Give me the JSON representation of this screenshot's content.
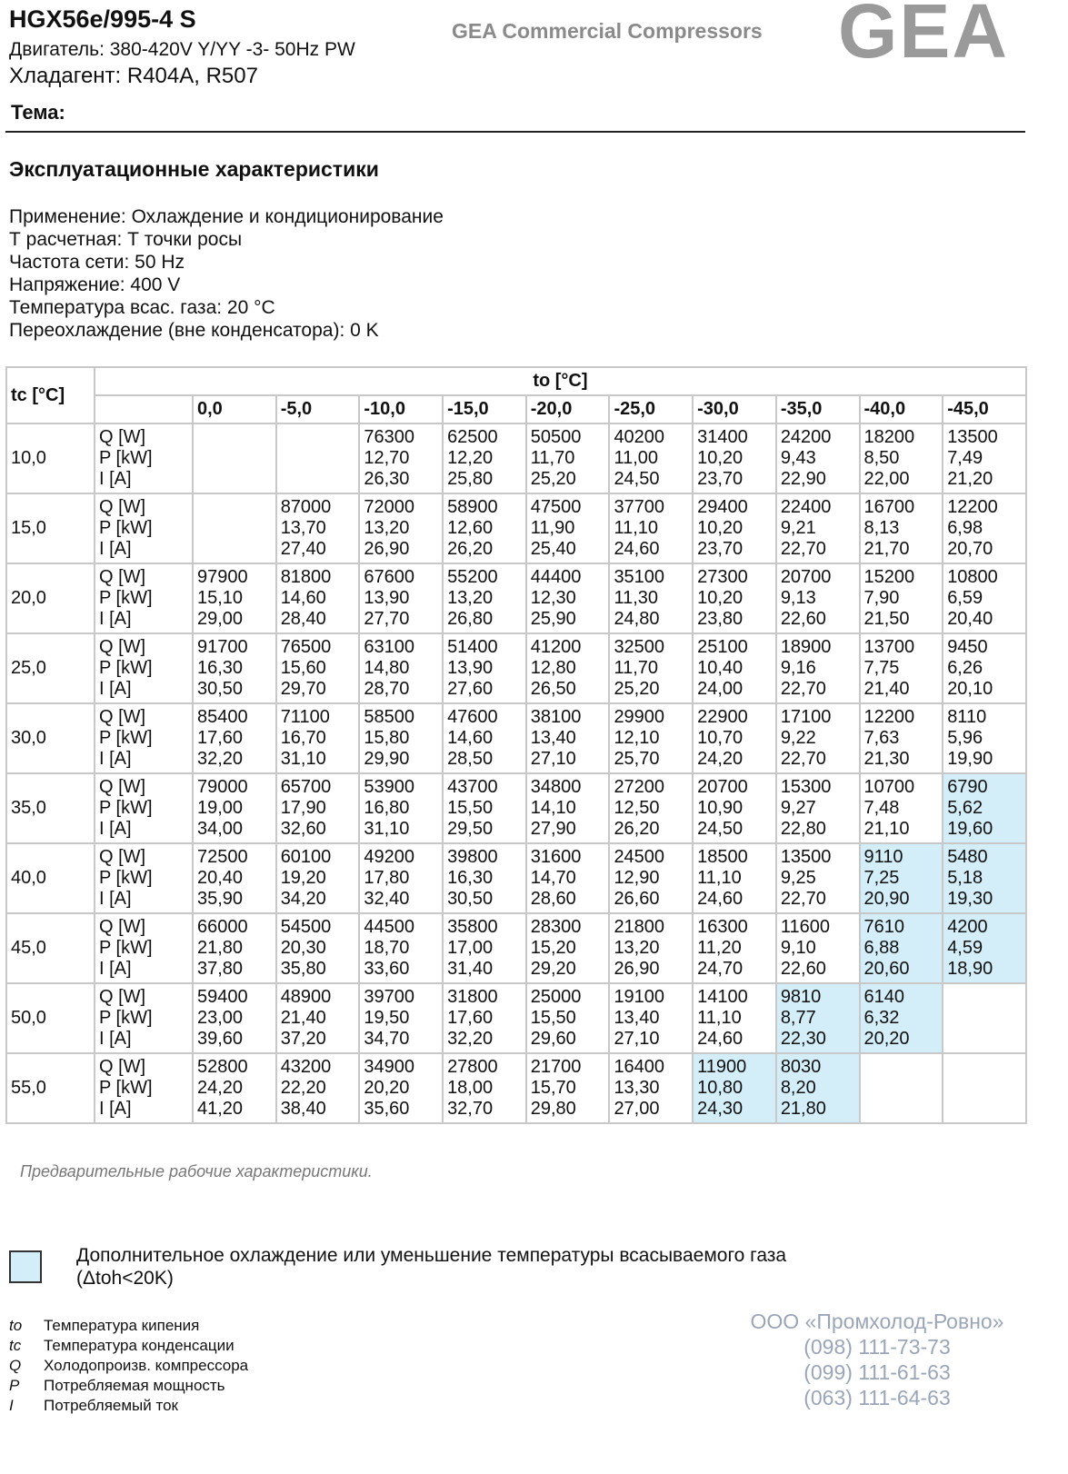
{
  "header": {
    "title": "HGX56e/995-4 S",
    "motor": "Двигатель: 380-420V Y/YY -3- 50Hz PW",
    "refrigerant": "Хладагент: R404A, R507",
    "subject": "Тема:",
    "brand": "GEA Commercial Compressors",
    "logo": "GEA"
  },
  "section_title": "Эксплуатационные характеристики",
  "params": [
    "Применение: Охлаждение и кондиционирование",
    "Т расчетная: Т точки росы",
    "Частота сети: 50 Hz",
    "Напряжение: 400 V",
    "Температура всас. газа: 20 °C",
    "Переохлаждение (вне конденсатора): 0 K"
  ],
  "table": {
    "corner": "tc [°C]",
    "group_header": "to [°C]",
    "columns": [
      "0,0",
      "-5,0",
      "-10,0",
      "-15,0",
      "-20,0",
      "-25,0",
      "-30,0",
      "-35,0",
      "-40,0",
      "-45,0"
    ],
    "quantities": [
      "Q [W]",
      "P [kW]",
      "I [A]"
    ],
    "highlight_color": "#d3eef8",
    "rows": [
      {
        "tc": "10,0",
        "cells": [
          null,
          null,
          {
            "values": [
              "76300",
              "12,70",
              "26,30"
            ],
            "highlight": false
          },
          {
            "values": [
              "62500",
              "12,20",
              "25,80"
            ],
            "highlight": false
          },
          {
            "values": [
              "50500",
              "11,70",
              "25,20"
            ],
            "highlight": false
          },
          {
            "values": [
              "40200",
              "11,00",
              "24,50"
            ],
            "highlight": false
          },
          {
            "values": [
              "31400",
              "10,20",
              "23,70"
            ],
            "highlight": false
          },
          {
            "values": [
              "24200",
              "9,43",
              "22,90"
            ],
            "highlight": false
          },
          {
            "values": [
              "18200",
              "8,50",
              "22,00"
            ],
            "highlight": false
          },
          {
            "values": [
              "13500",
              "7,49",
              "21,20"
            ],
            "highlight": false
          }
        ]
      },
      {
        "tc": "15,0",
        "cells": [
          null,
          {
            "values": [
              "87000",
              "13,70",
              "27,40"
            ],
            "highlight": false
          },
          {
            "values": [
              "72000",
              "13,20",
              "26,90"
            ],
            "highlight": false
          },
          {
            "values": [
              "58900",
              "12,60",
              "26,20"
            ],
            "highlight": false
          },
          {
            "values": [
              "47500",
              "11,90",
              "25,40"
            ],
            "highlight": false
          },
          {
            "values": [
              "37700",
              "11,10",
              "24,60"
            ],
            "highlight": false
          },
          {
            "values": [
              "29400",
              "10,20",
              "23,70"
            ],
            "highlight": false
          },
          {
            "values": [
              "22400",
              "9,21",
              "22,70"
            ],
            "highlight": false
          },
          {
            "values": [
              "16700",
              "8,13",
              "21,70"
            ],
            "highlight": false
          },
          {
            "values": [
              "12200",
              "6,98",
              "20,70"
            ],
            "highlight": false
          }
        ]
      },
      {
        "tc": "20,0",
        "cells": [
          {
            "values": [
              "97900",
              "15,10",
              "29,00"
            ],
            "highlight": false
          },
          {
            "values": [
              "81800",
              "14,60",
              "28,40"
            ],
            "highlight": false
          },
          {
            "values": [
              "67600",
              "13,90",
              "27,70"
            ],
            "highlight": false
          },
          {
            "values": [
              "55200",
              "13,20",
              "26,80"
            ],
            "highlight": false
          },
          {
            "values": [
              "44400",
              "12,30",
              "25,90"
            ],
            "highlight": false
          },
          {
            "values": [
              "35100",
              "11,30",
              "24,80"
            ],
            "highlight": false
          },
          {
            "values": [
              "27300",
              "10,20",
              "23,80"
            ],
            "highlight": false
          },
          {
            "values": [
              "20700",
              "9,13",
              "22,60"
            ],
            "highlight": false
          },
          {
            "values": [
              "15200",
              "7,90",
              "21,50"
            ],
            "highlight": false
          },
          {
            "values": [
              "10800",
              "6,59",
              "20,40"
            ],
            "highlight": false
          }
        ]
      },
      {
        "tc": "25,0",
        "cells": [
          {
            "values": [
              "91700",
              "16,30",
              "30,50"
            ],
            "highlight": false
          },
          {
            "values": [
              "76500",
              "15,60",
              "29,70"
            ],
            "highlight": false
          },
          {
            "values": [
              "63100",
              "14,80",
              "28,70"
            ],
            "highlight": false
          },
          {
            "values": [
              "51400",
              "13,90",
              "27,60"
            ],
            "highlight": false
          },
          {
            "values": [
              "41200",
              "12,80",
              "26,50"
            ],
            "highlight": false
          },
          {
            "values": [
              "32500",
              "11,70",
              "25,20"
            ],
            "highlight": false
          },
          {
            "values": [
              "25100",
              "10,40",
              "24,00"
            ],
            "highlight": false
          },
          {
            "values": [
              "18900",
              "9,16",
              "22,70"
            ],
            "highlight": false
          },
          {
            "values": [
              "13700",
              "7,75",
              "21,40"
            ],
            "highlight": false
          },
          {
            "values": [
              "9450",
              "6,26",
              "20,10"
            ],
            "highlight": false
          }
        ]
      },
      {
        "tc": "30,0",
        "cells": [
          {
            "values": [
              "85400",
              "17,60",
              "32,20"
            ],
            "highlight": false
          },
          {
            "values": [
              "71100",
              "16,70",
              "31,10"
            ],
            "highlight": false
          },
          {
            "values": [
              "58500",
              "15,80",
              "29,90"
            ],
            "highlight": false
          },
          {
            "values": [
              "47600",
              "14,60",
              "28,50"
            ],
            "highlight": false
          },
          {
            "values": [
              "38100",
              "13,40",
              "27,10"
            ],
            "highlight": false
          },
          {
            "values": [
              "29900",
              "12,10",
              "25,70"
            ],
            "highlight": false
          },
          {
            "values": [
              "22900",
              "10,70",
              "24,20"
            ],
            "highlight": false
          },
          {
            "values": [
              "17100",
              "9,22",
              "22,70"
            ],
            "highlight": false
          },
          {
            "values": [
              "12200",
              "7,63",
              "21,30"
            ],
            "highlight": false
          },
          {
            "values": [
              "8110",
              "5,96",
              "19,90"
            ],
            "highlight": false
          }
        ]
      },
      {
        "tc": "35,0",
        "cells": [
          {
            "values": [
              "79000",
              "19,00",
              "34,00"
            ],
            "highlight": false
          },
          {
            "values": [
              "65700",
              "17,90",
              "32,60"
            ],
            "highlight": false
          },
          {
            "values": [
              "53900",
              "16,80",
              "31,10"
            ],
            "highlight": false
          },
          {
            "values": [
              "43700",
              "15,50",
              "29,50"
            ],
            "highlight": false
          },
          {
            "values": [
              "34800",
              "14,10",
              "27,90"
            ],
            "highlight": false
          },
          {
            "values": [
              "27200",
              "12,50",
              "26,20"
            ],
            "highlight": false
          },
          {
            "values": [
              "20700",
              "10,90",
              "24,50"
            ],
            "highlight": false
          },
          {
            "values": [
              "15300",
              "9,27",
              "22,80"
            ],
            "highlight": false
          },
          {
            "values": [
              "10700",
              "7,48",
              "21,10"
            ],
            "highlight": false
          },
          {
            "values": [
              "6790",
              "5,62",
              "19,60"
            ],
            "highlight": true
          }
        ]
      },
      {
        "tc": "40,0",
        "cells": [
          {
            "values": [
              "72500",
              "20,40",
              "35,90"
            ],
            "highlight": false
          },
          {
            "values": [
              "60100",
              "19,20",
              "34,20"
            ],
            "highlight": false
          },
          {
            "values": [
              "49200",
              "17,80",
              "32,40"
            ],
            "highlight": false
          },
          {
            "values": [
              "39800",
              "16,30",
              "30,50"
            ],
            "highlight": false
          },
          {
            "values": [
              "31600",
              "14,70",
              "28,60"
            ],
            "highlight": false
          },
          {
            "values": [
              "24500",
              "12,90",
              "26,60"
            ],
            "highlight": false
          },
          {
            "values": [
              "18500",
              "11,10",
              "24,60"
            ],
            "highlight": false
          },
          {
            "values": [
              "13500",
              "9,25",
              "22,70"
            ],
            "highlight": false
          },
          {
            "values": [
              "9110",
              "7,25",
              "20,90"
            ],
            "highlight": true
          },
          {
            "values": [
              "5480",
              "5,18",
              "19,30"
            ],
            "highlight": true
          }
        ]
      },
      {
        "tc": "45,0",
        "cells": [
          {
            "values": [
              "66000",
              "21,80",
              "37,80"
            ],
            "highlight": false
          },
          {
            "values": [
              "54500",
              "20,30",
              "35,80"
            ],
            "highlight": false
          },
          {
            "values": [
              "44500",
              "18,70",
              "33,60"
            ],
            "highlight": false
          },
          {
            "values": [
              "35800",
              "17,00",
              "31,40"
            ],
            "highlight": false
          },
          {
            "values": [
              "28300",
              "15,20",
              "29,20"
            ],
            "highlight": false
          },
          {
            "values": [
              "21800",
              "13,20",
              "26,90"
            ],
            "highlight": false
          },
          {
            "values": [
              "16300",
              "11,20",
              "24,70"
            ],
            "highlight": false
          },
          {
            "values": [
              "11600",
              "9,10",
              "22,60"
            ],
            "highlight": false
          },
          {
            "values": [
              "7610",
              "6,88",
              "20,60"
            ],
            "highlight": true
          },
          {
            "values": [
              "4200",
              "4,59",
              "18,90"
            ],
            "highlight": true
          }
        ]
      },
      {
        "tc": "50,0",
        "cells": [
          {
            "values": [
              "59400",
              "23,00",
              "39,60"
            ],
            "highlight": false
          },
          {
            "values": [
              "48900",
              "21,40",
              "37,20"
            ],
            "highlight": false
          },
          {
            "values": [
              "39700",
              "19,50",
              "34,70"
            ],
            "highlight": false
          },
          {
            "values": [
              "31800",
              "17,60",
              "32,20"
            ],
            "highlight": false
          },
          {
            "values": [
              "25000",
              "15,50",
              "29,60"
            ],
            "highlight": false
          },
          {
            "values": [
              "19100",
              "13,40",
              "27,10"
            ],
            "highlight": false
          },
          {
            "values": [
              "14100",
              "11,10",
              "24,60"
            ],
            "highlight": false
          },
          {
            "values": [
              "9810",
              "8,77",
              "22,30"
            ],
            "highlight": true
          },
          {
            "values": [
              "6140",
              "6,32",
              "20,20"
            ],
            "highlight": true
          },
          null
        ]
      },
      {
        "tc": "55,0",
        "cells": [
          {
            "values": [
              "52800",
              "24,20",
              "41,20"
            ],
            "highlight": false
          },
          {
            "values": [
              "43200",
              "22,20",
              "38,40"
            ],
            "highlight": false
          },
          {
            "values": [
              "34900",
              "20,20",
              "35,60"
            ],
            "highlight": false
          },
          {
            "values": [
              "27800",
              "18,00",
              "32,70"
            ],
            "highlight": false
          },
          {
            "values": [
              "21700",
              "15,70",
              "29,80"
            ],
            "highlight": false
          },
          {
            "values": [
              "16400",
              "13,30",
              "27,00"
            ],
            "highlight": false
          },
          {
            "values": [
              "11900",
              "10,80",
              "24,30"
            ],
            "highlight": true
          },
          {
            "values": [
              "8030",
              "8,20",
              "21,80"
            ],
            "highlight": true
          },
          null,
          null
        ]
      }
    ]
  },
  "note": "Предварительные рабочие характеристики.",
  "legend": {
    "text": "Дополнительное охлаждение или уменьшение температуры всасываемого газа (Δtoh<20K)"
  },
  "abbreviations": [
    {
      "symbol": "to",
      "text": "Температура кипения"
    },
    {
      "symbol": "tc",
      "text": "Температура конденсации"
    },
    {
      "symbol": "Q",
      "text": "Холодопроизв. компрессора"
    },
    {
      "symbol": "P",
      "text": "Потребляемая мощность"
    },
    {
      "symbol": "I",
      "text": "Потребляемый ток"
    }
  ],
  "contact": {
    "company": "ООО «Промхолод-Ровно»",
    "phones": [
      "(098) 111-73-73",
      "(099) 111-61-63",
      "(063) 111-64-63"
    ]
  }
}
